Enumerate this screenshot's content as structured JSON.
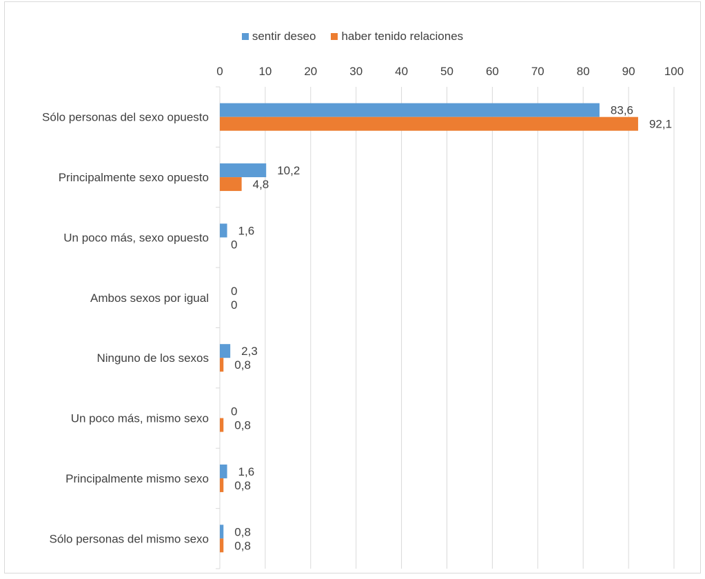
{
  "chart_data": {
    "type": "bar",
    "orientation": "horizontal",
    "categories": [
      "Sólo personas del sexo opuesto",
      "Principalmente sexo opuesto",
      "Un poco más, sexo opuesto",
      "Ambos sexos por igual",
      "Ninguno de los sexos",
      "Un poco más, mismo sexo",
      "Principalmente mismo sexo",
      "Sólo personas del mismo sexo"
    ],
    "series": [
      {
        "name": "sentir deseo",
        "color": "#5b9bd5",
        "values": [
          83.6,
          10.2,
          1.6,
          0,
          2.3,
          0,
          1.6,
          0.8
        ],
        "labels": [
          "83,6",
          "10,2",
          "1,6",
          "0",
          "2,3",
          "0",
          "1,6",
          "0,8"
        ]
      },
      {
        "name": "haber tenido relaciones",
        "color": "#ed7d31",
        "values": [
          92.1,
          4.8,
          0,
          0,
          0.8,
          0.8,
          0.8,
          0.8
        ],
        "labels": [
          "92,1",
          "4,8",
          "0",
          "0",
          "0,8",
          "0,8",
          "0,8",
          "0,8"
        ]
      }
    ],
    "xlim": [
      0,
      100
    ],
    "x_ticks": [
      0,
      10,
      20,
      30,
      40,
      50,
      60,
      70,
      80,
      90,
      100
    ],
    "x_axis_position": "top",
    "grid": true,
    "legend_position": "top"
  }
}
